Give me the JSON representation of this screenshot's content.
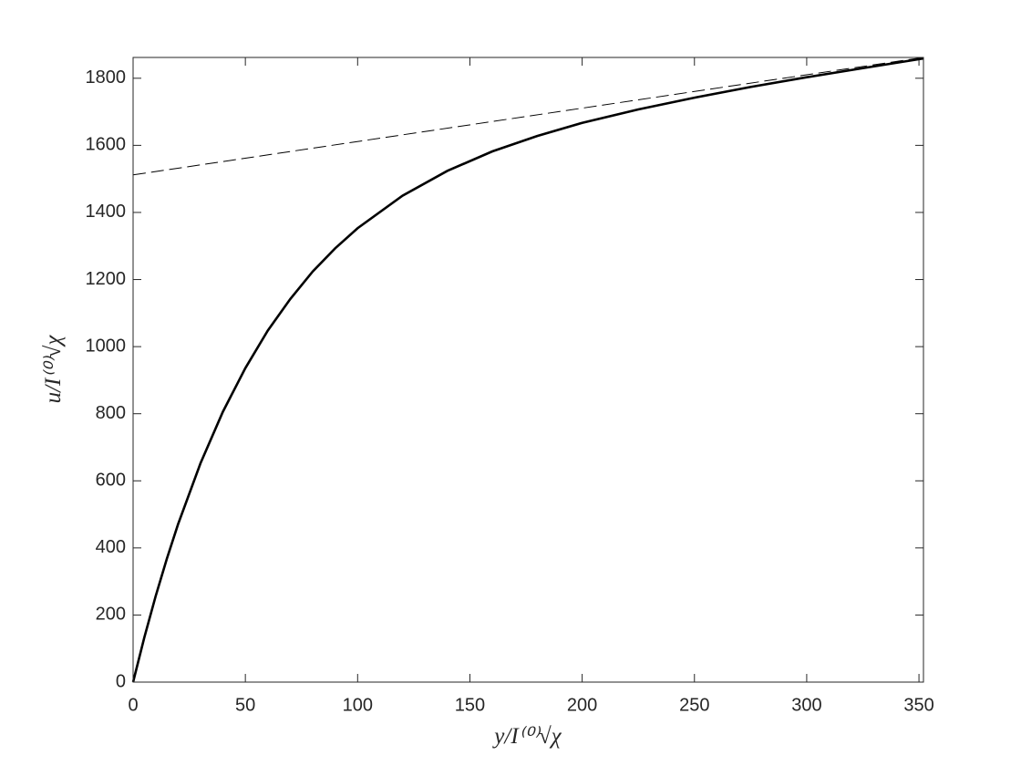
{
  "chart_data": {
    "type": "line",
    "xlabel": "y/I⁽⁰⁾√χ",
    "ylabel": "u/I⁽⁰⁾√χ",
    "series": [
      {
        "color": "#000000",
        "dashed": false,
        "width": 2.6,
        "x": [
          0,
          5,
          10,
          15,
          20,
          30,
          40,
          50,
          60,
          70,
          80,
          90,
          100,
          120,
          140,
          160,
          180,
          200,
          225,
          250,
          275,
          300,
          325,
          352
        ],
        "values": [
          0,
          133,
          255,
          367,
          470,
          652,
          806,
          936,
          1048,
          1142,
          1224,
          1293,
          1353,
          1450,
          1524,
          1582,
          1628,
          1667,
          1707,
          1742,
          1774,
          1803,
          1830,
          1859
        ]
      },
      {
        "color": "#000000",
        "dashed": true,
        "width": 1,
        "x": [
          0,
          352
        ],
        "values": [
          1512,
          1862
        ]
      }
    ],
    "xlim": [
      0,
      352
    ],
    "ylim": [
      0,
      1862
    ],
    "xticks": [
      0,
      50,
      100,
      150,
      200,
      250,
      300,
      350
    ],
    "yticks": [
      0,
      200,
      400,
      600,
      800,
      1000,
      1200,
      1400,
      1600,
      1800
    ],
    "box": true
  }
}
